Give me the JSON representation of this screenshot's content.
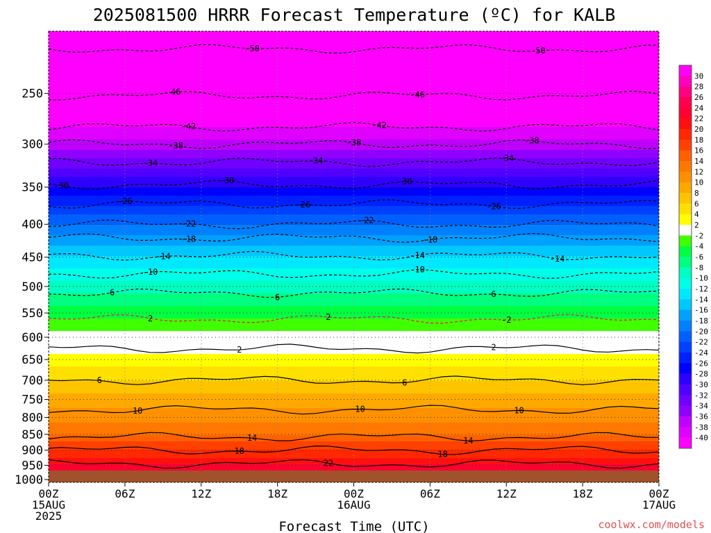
{
  "chart_data": {
    "type": "heatmap",
    "title": "2025081500 HRRR Forecast Temperature (ºC) for KALB",
    "xlabel": "Forecast Time (UTC)",
    "ylabel": "",
    "credit": "coolwx.com/models",
    "x_ticks": [
      {
        "hour": 0,
        "lines": [
          "00Z",
          "15AUG",
          "2025"
        ]
      },
      {
        "hour": 6,
        "lines": [
          "06Z"
        ]
      },
      {
        "hour": 12,
        "lines": [
          "12Z"
        ]
      },
      {
        "hour": 18,
        "lines": [
          "18Z"
        ]
      },
      {
        "hour": 24,
        "lines": [
          "00Z",
          "16AUG"
        ]
      },
      {
        "hour": 30,
        "lines": [
          "06Z"
        ]
      },
      {
        "hour": 36,
        "lines": [
          "12Z"
        ]
      },
      {
        "hour": 42,
        "lines": [
          "18Z"
        ]
      },
      {
        "hour": 48,
        "lines": [
          "00Z",
          "17AUG"
        ]
      }
    ],
    "xlim": [
      0,
      48
    ],
    "y_ticks": [
      250,
      300,
      350,
      400,
      450,
      500,
      550,
      600,
      650,
      700,
      750,
      800,
      850,
      900,
      950,
      1000
    ],
    "ylim_hPa": [
      1010,
      200
    ],
    "ylog": true,
    "grid": true,
    "colorbar": {
      "labels": [
        30,
        28,
        26,
        24,
        22,
        20,
        18,
        16,
        14,
        12,
        10,
        8,
        6,
        4,
        2,
        -2,
        -4,
        -6,
        -8,
        -10,
        -12,
        -14,
        -16,
        -18,
        -20,
        -22,
        -24,
        -26,
        -28,
        -30,
        -32,
        -34,
        -36,
        -38,
        -40
      ],
      "colors": [
        "#ff00ff",
        "#ff00c0",
        "#ff0080",
        "#ff0050",
        "#ff0030",
        "#ff1010",
        "#ff2800",
        "#ff4000",
        "#ff6000",
        "#ff7800",
        "#ff9000",
        "#ffa800",
        "#ffc400",
        "#ffe000",
        "#ffff00",
        "#ffffff",
        "#40ff00",
        "#00ff40",
        "#00ff80",
        "#00ffc0",
        "#00ffe8",
        "#00e8ff",
        "#00c8ff",
        "#00a0ff",
        "#0080ff",
        "#0060ff",
        "#0040ff",
        "#0020ff",
        "#0000ff",
        "#3000ff",
        "#5000ff",
        "#7000ff",
        "#9000ff",
        "#c000ff",
        "#e000ff",
        "#ff00ff"
      ]
    },
    "temperature_profile": [
      {
        "p": 1000,
        "t": 25
      },
      {
        "p": 950,
        "t": 22
      },
      {
        "p": 900,
        "t": 18
      },
      {
        "p": 850,
        "t": 14
      },
      {
        "p": 800,
        "t": 11
      },
      {
        "p": 750,
        "t": 9
      },
      {
        "p": 700,
        "t": 6
      },
      {
        "p": 650,
        "t": 3
      },
      {
        "p": 620,
        "t": 1
      },
      {
        "p": 600,
        "t": -1
      },
      {
        "p": 570,
        "t": -3
      },
      {
        "p": 550,
        "t": -5
      },
      {
        "p": 500,
        "t": -9
      },
      {
        "p": 450,
        "t": -14
      },
      {
        "p": 400,
        "t": -20
      },
      {
        "p": 350,
        "t": -28
      },
      {
        "p": 300,
        "t": -37
      },
      {
        "p": 250,
        "t": -46
      },
      {
        "p": 200,
        "t": -52
      }
    ],
    "contours": [
      {
        "value": -50,
        "p": 213,
        "labels": [
          {
            "hour": 16,
            "text": "-50"
          },
          {
            "hour": 38.5,
            "text": "-50"
          }
        ]
      },
      {
        "value": -46,
        "p": 252,
        "labels": [
          {
            "hour": 10,
            "text": "46"
          },
          {
            "hour": 29,
            "text": "-46"
          }
        ]
      },
      {
        "value": -42,
        "p": 282,
        "labels": [
          {
            "hour": 11,
            "text": "-42"
          },
          {
            "hour": 26,
            "text": "-42"
          }
        ]
      },
      {
        "value": -38,
        "p": 300,
        "labels": [
          {
            "hour": 10,
            "text": "-38"
          },
          {
            "hour": 24,
            "text": "-38"
          },
          {
            "hour": 38,
            "text": "-38"
          }
        ]
      },
      {
        "value": -34,
        "p": 320,
        "labels": [
          {
            "hour": 8,
            "text": "-34"
          },
          {
            "hour": 21,
            "text": "-34"
          },
          {
            "hour": 36,
            "text": "-34"
          }
        ]
      },
      {
        "value": -30,
        "p": 347,
        "labels": [
          {
            "hour": 1,
            "text": "-30"
          },
          {
            "hour": 14,
            "text": "-30"
          },
          {
            "hour": 28,
            "text": "-30"
          }
        ]
      },
      {
        "value": -26,
        "p": 372,
        "labels": [
          {
            "hour": 6,
            "text": "-26"
          },
          {
            "hour": 20,
            "text": "-26"
          },
          {
            "hour": 35,
            "text": "-26"
          }
        ]
      },
      {
        "value": -22,
        "p": 400,
        "labels": [
          {
            "hour": 11,
            "text": "-22"
          },
          {
            "hour": 25,
            "text": "-22"
          }
        ]
      },
      {
        "value": -18,
        "p": 420,
        "labels": [
          {
            "hour": 11,
            "text": "-18"
          },
          {
            "hour": 30,
            "text": "-18"
          }
        ]
      },
      {
        "value": -14,
        "p": 448,
        "labels": [
          {
            "hour": 9,
            "text": "-14"
          },
          {
            "hour": 29,
            "text": "-14"
          },
          {
            "hour": 40,
            "text": "-14"
          }
        ]
      },
      {
        "value": -10,
        "p": 478,
        "labels": [
          {
            "hour": 8,
            "text": "-10"
          },
          {
            "hour": 29,
            "text": "-10"
          }
        ]
      },
      {
        "value": -6,
        "p": 512,
        "labels": [
          {
            "hour": 5,
            "text": "6"
          },
          {
            "hour": 18,
            "text": "6"
          },
          {
            "hour": 35,
            "text": "6"
          }
        ]
      },
      {
        "value": -2,
        "p": 562,
        "labels": [
          {
            "hour": 8,
            "text": "2"
          },
          {
            "hour": 22,
            "text": "2"
          },
          {
            "hour": 36,
            "text": "-2"
          }
        ]
      },
      {
        "value": 2,
        "p": 625,
        "labels": [
          {
            "hour": 15,
            "text": "2"
          },
          {
            "hour": 35,
            "text": "2"
          }
        ]
      },
      {
        "value": 6,
        "p": 700,
        "labels": [
          {
            "hour": 4,
            "text": "6"
          },
          {
            "hour": 28,
            "text": "6"
          }
        ]
      },
      {
        "value": 10,
        "p": 778,
        "labels": [
          {
            "hour": 7,
            "text": "10"
          },
          {
            "hour": 24.5,
            "text": "10"
          },
          {
            "hour": 37,
            "text": "10"
          }
        ]
      },
      {
        "value": 14,
        "p": 858,
        "labels": [
          {
            "hour": 16,
            "text": "14"
          },
          {
            "hour": 33,
            "text": "14"
          }
        ]
      },
      {
        "value": 18,
        "p": 900,
        "labels": [
          {
            "hour": 15,
            "text": "18"
          },
          {
            "hour": 31,
            "text": "18"
          }
        ]
      },
      {
        "value": 22,
        "p": 945,
        "labels": [
          {
            "hour": 22,
            "text": "22"
          }
        ]
      }
    ]
  }
}
